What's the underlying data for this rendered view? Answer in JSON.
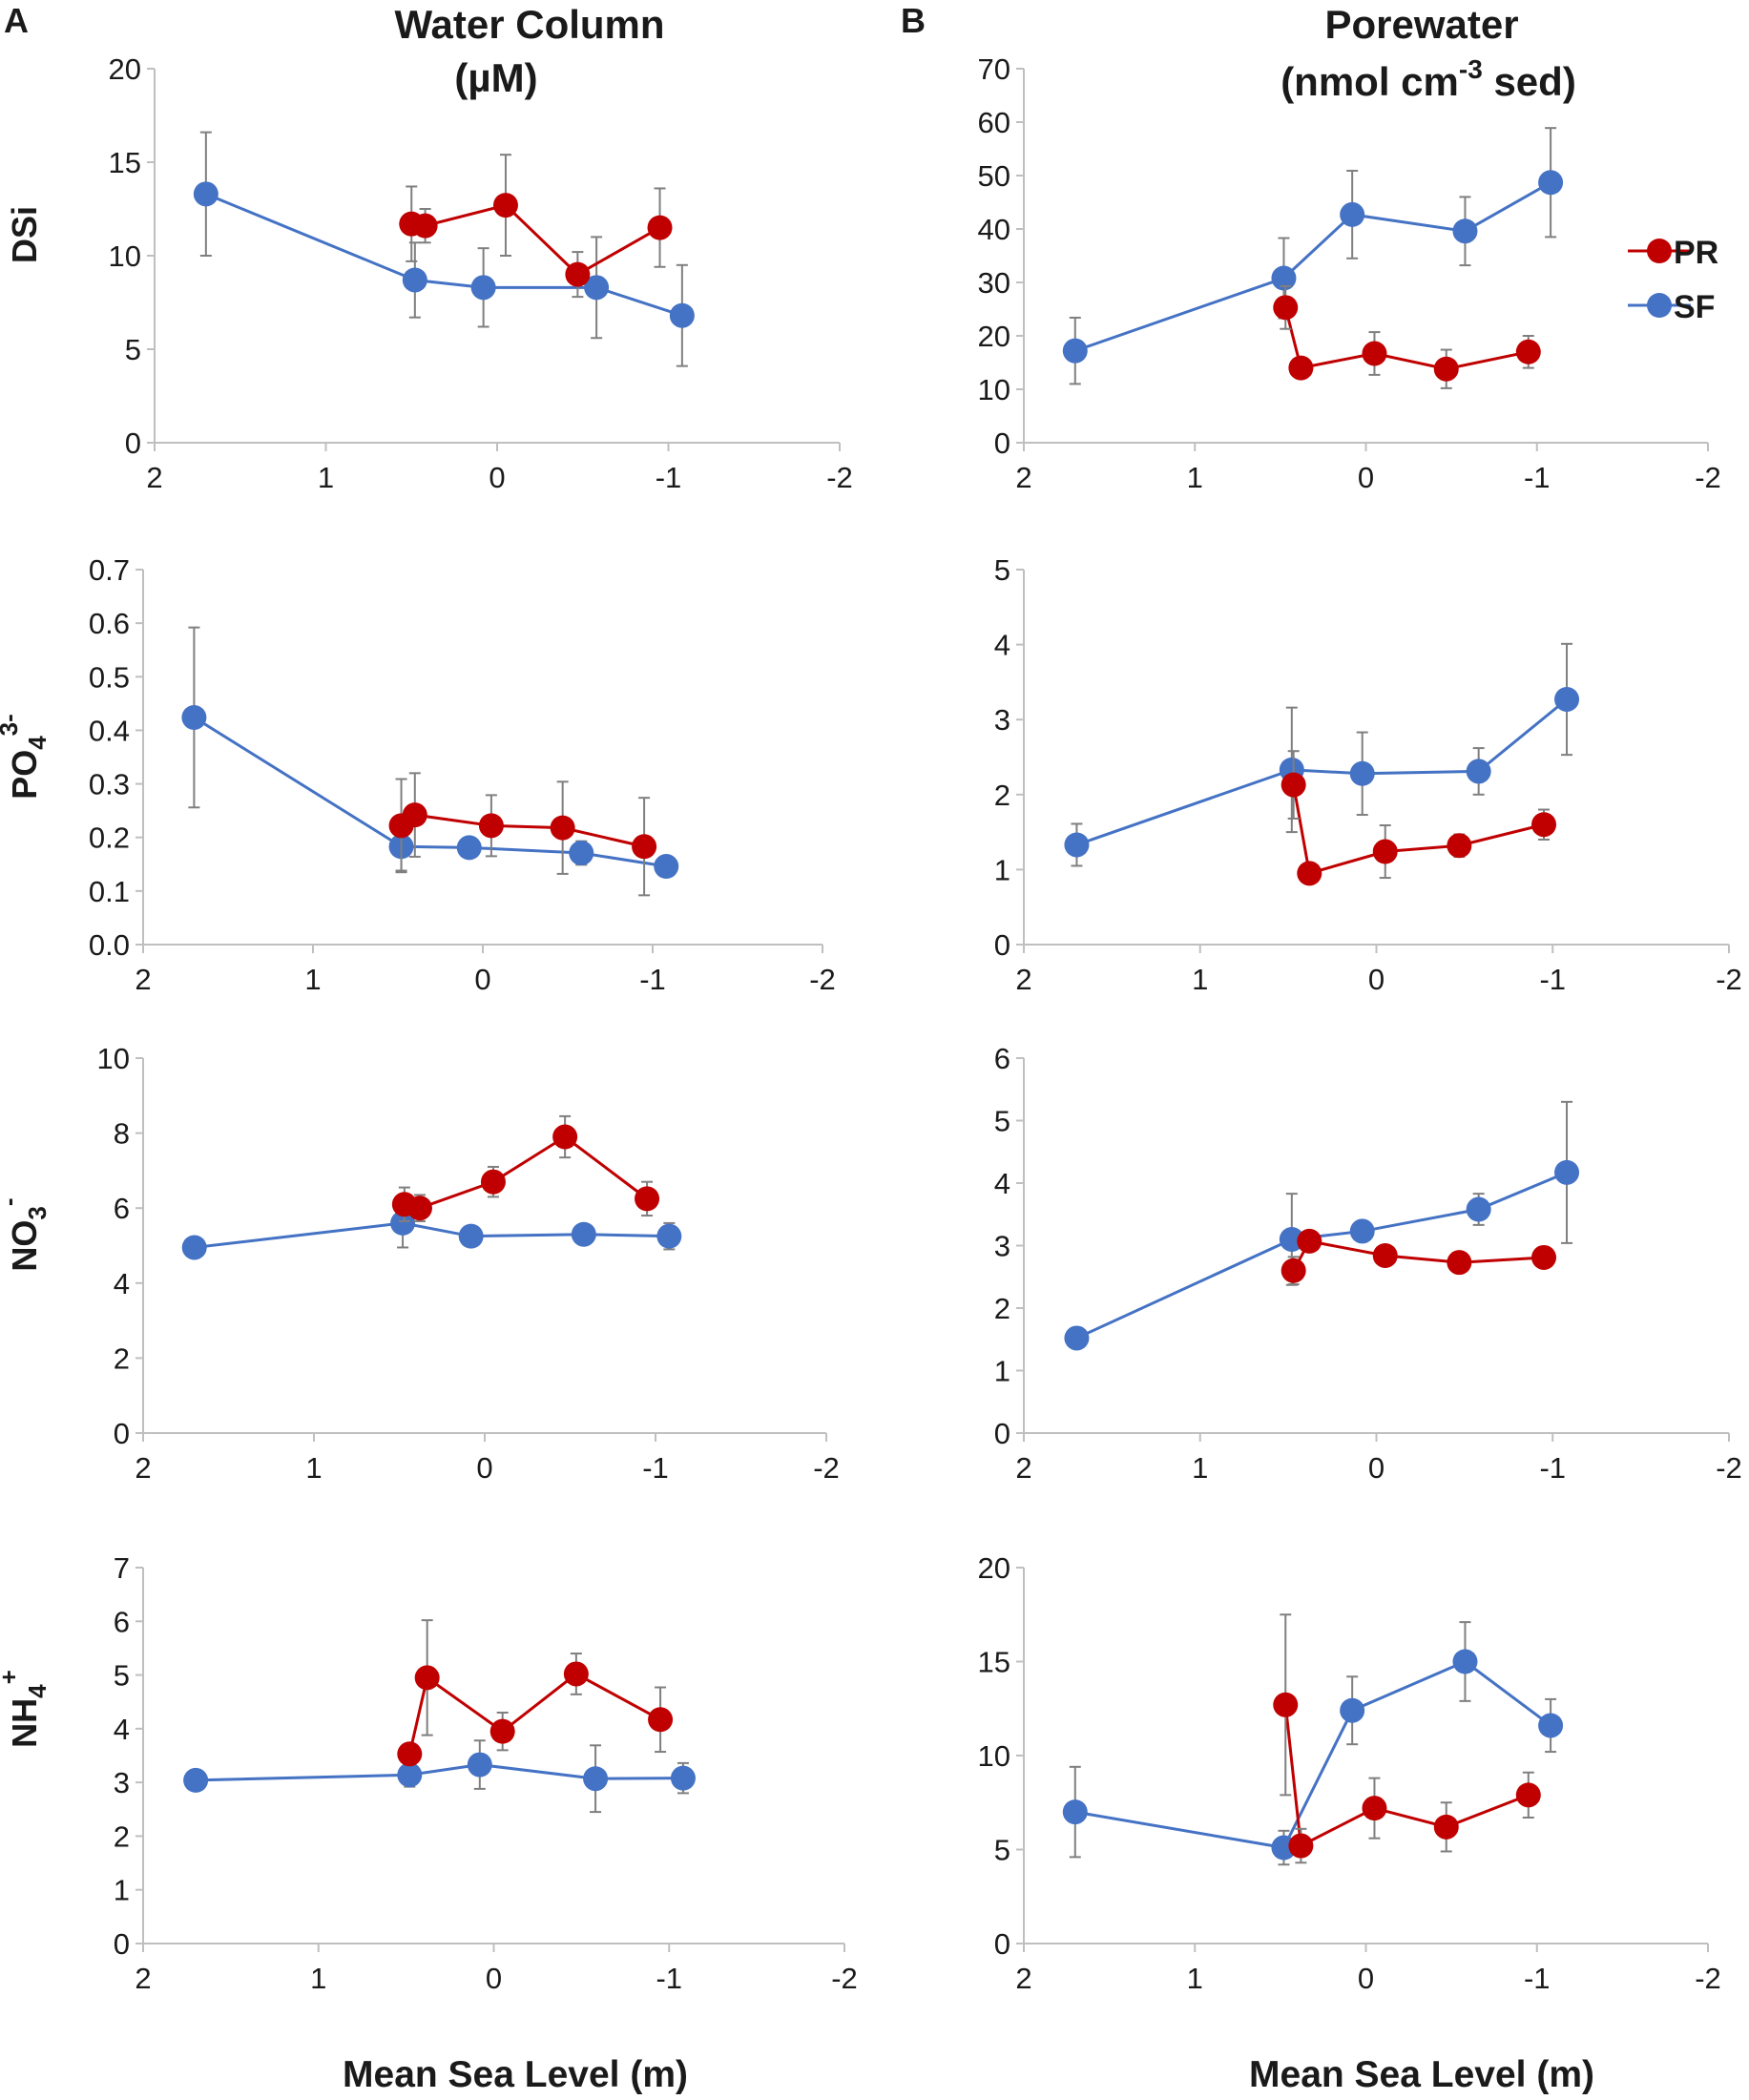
{
  "panels": {
    "a_label": "A",
    "b_label": "B",
    "a_title_line1": "Water Column",
    "a_title_line2": "(µM)",
    "b_title_line1": "Porewater",
    "b_title_line2a": "(nmol cm",
    "b_title_sup": "-3",
    "b_title_line2b": " sed)"
  },
  "xaxis": {
    "title": "Mean Sea Level (m)",
    "ticks": [
      "2",
      "1",
      "0",
      "-1",
      "-2"
    ]
  },
  "rows": [
    {
      "label": "DSi",
      "label_sub": "",
      "label_sup": ""
    },
    {
      "label": "PO",
      "label_sub": "4",
      "label_sup": "3-"
    },
    {
      "label": "NO",
      "label_sub": "3",
      "label_sup": "-"
    },
    {
      "label": "NH",
      "label_sub": "4",
      "label_sup": "+"
    }
  ],
  "legend": [
    {
      "name": "PR",
      "color": "#c00000"
    },
    {
      "name": "SF",
      "color": "#4472c4"
    }
  ],
  "colors": {
    "PR": "#c00000",
    "SF": "#4472c4",
    "axis": "#bfbfbf",
    "error": "#7f7f7f"
  },
  "chart_data": [
    {
      "type": "scatter",
      "panel": "A",
      "variable": "DSi",
      "unit": "µM",
      "xlabel": "Mean Sea Level (m)",
      "xlim": [
        2,
        -2
      ],
      "ylim": [
        0,
        20
      ],
      "yticks": [
        "0",
        "5",
        "10",
        "15",
        "20"
      ],
      "series": [
        {
          "name": "PR",
          "points": [
            {
              "x": 0.5,
              "y": 11.7,
              "err": 2.0
            },
            {
              "x": 0.42,
              "y": 11.6,
              "err": 0.9
            },
            {
              "x": -0.05,
              "y": 12.7,
              "err": 2.7
            },
            {
              "x": -0.47,
              "y": 9.0,
              "err": 1.2
            },
            {
              "x": -0.95,
              "y": 11.5,
              "err": 2.1
            }
          ]
        },
        {
          "name": "SF",
          "points": [
            {
              "x": 1.7,
              "y": 13.3,
              "err": 3.3
            },
            {
              "x": 0.48,
              "y": 8.7,
              "err": 2.0
            },
            {
              "x": 0.08,
              "y": 8.3,
              "err": 2.1
            },
            {
              "x": -0.58,
              "y": 8.3,
              "err": 2.7
            },
            {
              "x": -1.08,
              "y": 6.8,
              "err": 2.7
            }
          ]
        }
      ]
    },
    {
      "type": "scatter",
      "panel": "B",
      "variable": "DSi",
      "unit": "nmol cm-3 sed",
      "xlabel": "Mean Sea Level (m)",
      "xlim": [
        2,
        -2
      ],
      "ylim": [
        0,
        70
      ],
      "yticks": [
        "0",
        "10",
        "20",
        "30",
        "40",
        "50",
        "60",
        "70"
      ],
      "series": [
        {
          "name": "PR",
          "points": [
            {
              "x": 0.47,
              "y": 25.3,
              "err": 4.0
            },
            {
              "x": 0.38,
              "y": 14.0,
              "err": 1.5
            },
            {
              "x": -0.05,
              "y": 16.7,
              "err": 4.0
            },
            {
              "x": -0.47,
              "y": 13.8,
              "err": 3.6
            },
            {
              "x": -0.95,
              "y": 17.0,
              "err": 3.0
            }
          ]
        },
        {
          "name": "SF",
          "points": [
            {
              "x": 1.7,
              "y": 17.2,
              "err": 6.2
            },
            {
              "x": 0.48,
              "y": 30.8,
              "err": 7.5
            },
            {
              "x": 0.08,
              "y": 42.7,
              "err": 8.2
            },
            {
              "x": -0.58,
              "y": 39.6,
              "err": 6.4
            },
            {
              "x": -1.08,
              "y": 48.7,
              "err": 10.2
            }
          ]
        }
      ]
    },
    {
      "type": "scatter",
      "panel": "A",
      "variable": "PO4 3-",
      "unit": "µM",
      "xlabel": "Mean Sea Level (m)",
      "xlim": [
        2,
        -2
      ],
      "ylim": [
        0,
        0.7
      ],
      "yticks": [
        "0.0",
        "0.1",
        "0.2",
        "0.3",
        "0.4",
        "0.5",
        "0.6",
        "0.7"
      ],
      "series": [
        {
          "name": "PR",
          "points": [
            {
              "x": 0.48,
              "y": 0.222,
              "err": 0.087
            },
            {
              "x": 0.4,
              "y": 0.242,
              "err": 0.078
            },
            {
              "x": -0.05,
              "y": 0.222,
              "err": 0.057
            },
            {
              "x": -0.47,
              "y": 0.218,
              "err": 0.086
            },
            {
              "x": -0.95,
              "y": 0.183,
              "err": 0.091
            }
          ]
        },
        {
          "name": "SF",
          "points": [
            {
              "x": 1.7,
              "y": 0.424,
              "err": 0.168
            },
            {
              "x": 0.48,
              "y": 0.183,
              "err": 0.045
            },
            {
              "x": 0.08,
              "y": 0.181,
              "err": 0.01
            },
            {
              "x": -0.58,
              "y": 0.171,
              "err": 0.022
            },
            {
              "x": -1.08,
              "y": 0.146,
              "err": 0.017
            }
          ]
        }
      ]
    },
    {
      "type": "scatter",
      "panel": "B",
      "variable": "PO4 3-",
      "unit": "nmol cm-3 sed",
      "xlabel": "Mean Sea Level (m)",
      "xlim": [
        2,
        -2
      ],
      "ylim": [
        0,
        5
      ],
      "yticks": [
        "0",
        "1",
        "2",
        "3",
        "4",
        "5"
      ],
      "series": [
        {
          "name": "PR",
          "points": [
            {
              "x": 0.47,
              "y": 2.13,
              "err": 0.45
            },
            {
              "x": 0.38,
              "y": 0.95,
              "err": 0.0
            },
            {
              "x": -0.05,
              "y": 1.24,
              "err": 0.35
            },
            {
              "x": -0.47,
              "y": 1.32,
              "err": 0.15
            },
            {
              "x": -0.95,
              "y": 1.6,
              "err": 0.2
            }
          ]
        },
        {
          "name": "SF",
          "points": [
            {
              "x": 1.7,
              "y": 1.33,
              "err": 0.28
            },
            {
              "x": 0.48,
              "y": 2.33,
              "err": 0.83
            },
            {
              "x": 0.08,
              "y": 2.28,
              "err": 0.55
            },
            {
              "x": -0.58,
              "y": 2.31,
              "err": 0.31
            },
            {
              "x": -1.08,
              "y": 3.27,
              "err": 0.74
            }
          ]
        }
      ]
    },
    {
      "type": "scatter",
      "panel": "A",
      "variable": "NO3 -",
      "unit": "µM",
      "xlabel": "Mean Sea Level (m)",
      "xlim": [
        2,
        -2
      ],
      "ylim": [
        0,
        10
      ],
      "yticks": [
        "0",
        "2",
        "4",
        "6",
        "8",
        "10"
      ],
      "series": [
        {
          "name": "PR",
          "points": [
            {
              "x": 0.47,
              "y": 6.1,
              "err": 0.45
            },
            {
              "x": 0.38,
              "y": 6.0,
              "err": 0.35
            },
            {
              "x": -0.05,
              "y": 6.7,
              "err": 0.4
            },
            {
              "x": -0.47,
              "y": 7.9,
              "err": 0.55
            },
            {
              "x": -0.95,
              "y": 6.25,
              "err": 0.45
            }
          ]
        },
        {
          "name": "SF",
          "points": [
            {
              "x": 1.7,
              "y": 4.95,
              "err": 0.0
            },
            {
              "x": 0.48,
              "y": 5.6,
              "err": 0.65
            },
            {
              "x": 0.08,
              "y": 5.25,
              "err": 0.0
            },
            {
              "x": -0.58,
              "y": 5.3,
              "err": 0.0
            },
            {
              "x": -1.08,
              "y": 5.25,
              "err": 0.35
            }
          ]
        }
      ]
    },
    {
      "type": "scatter",
      "panel": "B",
      "variable": "NO3 -",
      "unit": "nmol cm-3 sed",
      "xlabel": "Mean Sea Level (m)",
      "xlim": [
        2,
        -2
      ],
      "ylim": [
        0,
        6
      ],
      "yticks": [
        "0",
        "1",
        "2",
        "3",
        "4",
        "5",
        "6"
      ],
      "series": [
        {
          "name": "PR",
          "points": [
            {
              "x": 0.47,
              "y": 2.6,
              "err": 0.22
            },
            {
              "x": 0.38,
              "y": 3.07,
              "err": 0.0
            },
            {
              "x": -0.05,
              "y": 2.84,
              "err": 0.0
            },
            {
              "x": -0.47,
              "y": 2.73,
              "err": 0.0
            },
            {
              "x": -0.95,
              "y": 2.81,
              "err": 0.0
            }
          ]
        },
        {
          "name": "SF",
          "points": [
            {
              "x": 1.7,
              "y": 1.52,
              "err": 0.0
            },
            {
              "x": 0.48,
              "y": 3.1,
              "err": 0.73
            },
            {
              "x": 0.08,
              "y": 3.23,
              "err": 0.0
            },
            {
              "x": -0.58,
              "y": 3.58,
              "err": 0.25
            },
            {
              "x": -1.08,
              "y": 4.17,
              "err": 1.13
            }
          ]
        }
      ]
    },
    {
      "type": "scatter",
      "panel": "A",
      "variable": "NH4 +",
      "unit": "µM",
      "xlabel": "Mean Sea Level (m)",
      "xlim": [
        2,
        -2
      ],
      "ylim": [
        0,
        7
      ],
      "yticks": [
        "0",
        "1",
        "2",
        "3",
        "4",
        "5",
        "6",
        "7"
      ],
      "series": [
        {
          "name": "PR",
          "points": [
            {
              "x": 0.48,
              "y": 3.53,
              "err": 0.0
            },
            {
              "x": 0.38,
              "y": 4.95,
              "err": 1.07
            },
            {
              "x": -0.05,
              "y": 3.95,
              "err": 0.35
            },
            {
              "x": -0.47,
              "y": 5.02,
              "err": 0.38
            },
            {
              "x": -0.95,
              "y": 4.17,
              "err": 0.6
            }
          ]
        },
        {
          "name": "SF",
          "points": [
            {
              "x": 1.7,
              "y": 3.04,
              "err": 0.0
            },
            {
              "x": 0.48,
              "y": 3.14,
              "err": 0.22
            },
            {
              "x": 0.08,
              "y": 3.33,
              "err": 0.45
            },
            {
              "x": -0.58,
              "y": 3.07,
              "err": 0.62
            },
            {
              "x": -1.08,
              "y": 3.08,
              "err": 0.28
            }
          ]
        }
      ]
    },
    {
      "type": "scatter",
      "panel": "B",
      "variable": "NH4 +",
      "unit": "nmol cm-3 sed",
      "xlabel": "Mean Sea Level (m)",
      "xlim": [
        2,
        -2
      ],
      "ylim": [
        0,
        20
      ],
      "yticks": [
        "0",
        "5",
        "10",
        "15",
        "20"
      ],
      "series": [
        {
          "name": "PR",
          "points": [
            {
              "x": 0.47,
              "y": 12.7,
              "err": 4.8
            },
            {
              "x": 0.38,
              "y": 5.2,
              "err": 0.9
            },
            {
              "x": -0.05,
              "y": 7.2,
              "err": 1.6
            },
            {
              "x": -0.47,
              "y": 6.2,
              "err": 1.3
            },
            {
              "x": -0.95,
              "y": 7.9,
              "err": 1.2
            }
          ]
        },
        {
          "name": "SF",
          "points": [
            {
              "x": 1.7,
              "y": 7.0,
              "err": 2.4
            },
            {
              "x": 0.48,
              "y": 5.1,
              "err": 0.9
            },
            {
              "x": 0.08,
              "y": 12.4,
              "err": 1.8
            },
            {
              "x": -0.58,
              "y": 15.0,
              "err": 2.1
            },
            {
              "x": -1.08,
              "y": 11.6,
              "err": 1.4
            }
          ]
        }
      ]
    }
  ]
}
